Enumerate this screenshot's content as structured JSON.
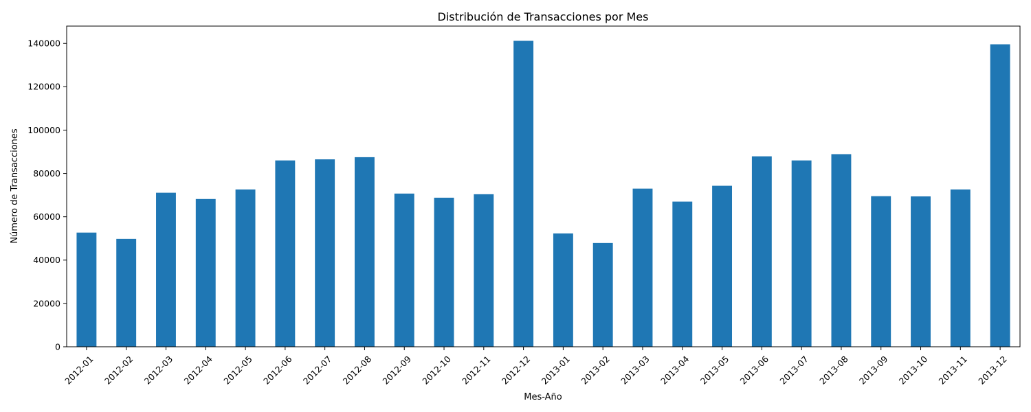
{
  "chart_data": {
    "type": "bar",
    "title": "Distribución de Transacciones por Mes",
    "xlabel": "Mes-Año",
    "ylabel": "Número de Transacciones",
    "categories": [
      "2012-01",
      "2012-02",
      "2012-03",
      "2012-04",
      "2012-05",
      "2012-06",
      "2012-07",
      "2012-08",
      "2012-09",
      "2012-10",
      "2012-11",
      "2012-12",
      "2013-01",
      "2013-02",
      "2013-03",
      "2013-04",
      "2013-05",
      "2013-06",
      "2013-07",
      "2013-08",
      "2013-09",
      "2013-10",
      "2013-11",
      "2013-12"
    ],
    "values": [
      52700,
      49800,
      71100,
      68200,
      72600,
      86000,
      86500,
      87500,
      70700,
      68800,
      70400,
      141200,
      52300,
      47900,
      73000,
      67000,
      74300,
      87900,
      86000,
      88900,
      69500,
      69400,
      72600,
      139600
    ],
    "ylim": [
      0,
      148000
    ],
    "yticks": [
      0,
      20000,
      40000,
      60000,
      80000,
      100000,
      120000,
      140000
    ],
    "legend": "none",
    "grid": false,
    "colors": {
      "bar": "#1f77b4",
      "axis": "#000000"
    }
  }
}
